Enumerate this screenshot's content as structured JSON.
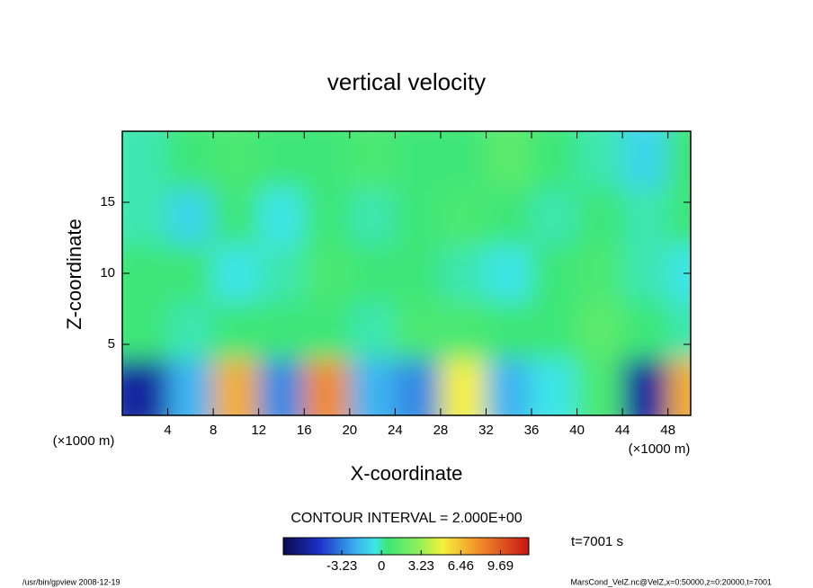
{
  "chart_data": {
    "type": "contour",
    "title": "vertical velocity",
    "x_label": "X-coordinate",
    "y_label": "Z-coordinate",
    "x_unit": "(×1000 m)",
    "y_unit": "(×1000 m)",
    "xlim": [
      0,
      50
    ],
    "ylim": [
      0,
      20
    ],
    "xticks": [
      4,
      8,
      12,
      16,
      20,
      24,
      28,
      32,
      36,
      40,
      44,
      48
    ],
    "yticks": [
      5,
      10,
      15
    ],
    "x": [
      2,
      6,
      10,
      14,
      18,
      22,
      26,
      30,
      34,
      38,
      42,
      46,
      50
    ],
    "z_levels": [
      2,
      6,
      10,
      14,
      18
    ],
    "values": [
      [
        -6,
        -2,
        7,
        -3,
        8,
        -2,
        -3,
        5,
        -2,
        -0.5,
        1,
        -6,
        7
      ],
      [
        0.5,
        0,
        0.5,
        0.5,
        0.5,
        0,
        1,
        1,
        0.5,
        0.5,
        1.5,
        0.5,
        0
      ],
      [
        0.5,
        0.5,
        -0.5,
        0,
        1,
        0.5,
        0.5,
        0,
        -0.5,
        0.5,
        1,
        0,
        -0.5
      ],
      [
        0,
        -1,
        0.5,
        -0.5,
        0.5,
        0,
        0.5,
        1,
        0.5,
        0,
        0.5,
        0,
        0.5
      ],
      [
        0,
        0.5,
        1,
        0.5,
        0.5,
        1,
        0.5,
        0.5,
        1.5,
        0.5,
        0,
        -1,
        0.5
      ]
    ],
    "contour_interval_label": "CONTOUR INTERVAL = 2.000E+00",
    "time_label": "t=7001 s",
    "clim": [
      -8,
      12
    ],
    "colorbar_ticks": [
      -3.23,
      0,
      3.23,
      6.46,
      9.69
    ],
    "colormap": [
      {
        "value": -8,
        "color": "#0a0a4a"
      },
      {
        "value": -5,
        "color": "#1e32c8"
      },
      {
        "value": -2,
        "color": "#3cb4f0"
      },
      {
        "value": -0.5,
        "color": "#3ce6e6"
      },
      {
        "value": 0.5,
        "color": "#3ce678"
      },
      {
        "value": 3,
        "color": "#8cf05a"
      },
      {
        "value": 5,
        "color": "#f5f03c"
      },
      {
        "value": 8,
        "color": "#f08c28"
      },
      {
        "value": 12,
        "color": "#c81414"
      }
    ],
    "footer_left": "/usr/bin/gpview   2008-12-19",
    "footer_right": "MarsCond_VelZ.nc@VelZ,x=0:50000,z=0:20000,t=7001"
  }
}
